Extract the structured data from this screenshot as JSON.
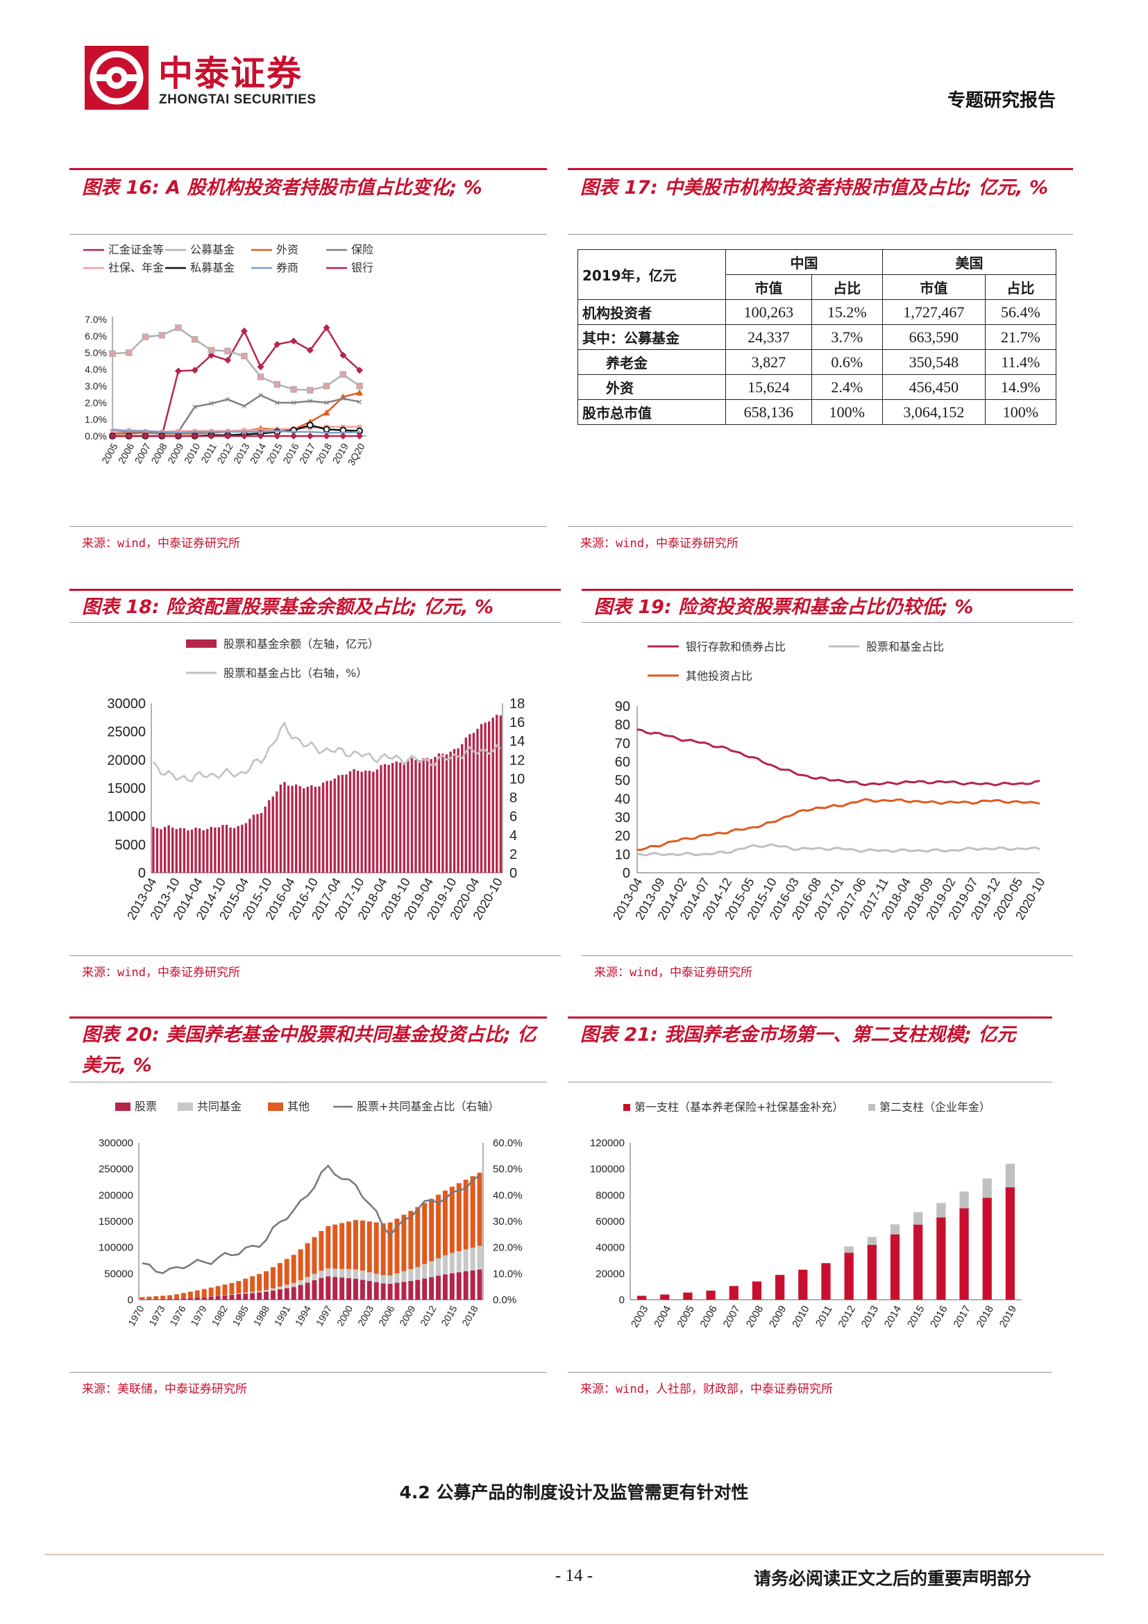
{
  "header": {
    "logo_cn": "中泰证券",
    "logo_en": "ZHONGTAI SECURITIES",
    "report_type": "专题研究报告"
  },
  "fig16": {
    "title": "图表 16: A 股机构投资者持股市值占比变化; %",
    "source": "来源：wind，中泰证券研究所",
    "chart_data": {
      "type": "line",
      "x": [
        "2005",
        "2006",
        "2007",
        "2008",
        "2009",
        "2010",
        "2011",
        "2012",
        "2013",
        "2014",
        "2015",
        "2016",
        "2017",
        "2018",
        "2019",
        "3Q20"
      ],
      "ylim": [
        0,
        7
      ],
      "yticks": [
        "0.0%",
        "1.0%",
        "2.0%",
        "3.0%",
        "4.0%",
        "5.0%",
        "6.0%",
        "7.0%"
      ],
      "series": [
        {
          "name": "汇金证金等",
          "color": "#b5244a",
          "values": [
            0,
            0,
            0,
            0,
            3.9,
            3.95,
            4.85,
            4.55,
            6.3,
            4.15,
            5.5,
            5.7,
            5.15,
            6.5,
            4.85,
            3.95
          ]
        },
        {
          "name": "公募基金",
          "color": "#b0b0b0",
          "values": [
            4.95,
            5.0,
            5.95,
            6.05,
            6.5,
            5.8,
            5.15,
            5.1,
            4.8,
            3.55,
            3.1,
            2.8,
            2.75,
            3.0,
            3.7,
            3.0
          ]
        },
        {
          "name": "外资",
          "color": "#e05a1e",
          "values": [
            0.15,
            0.15,
            0.2,
            0.15,
            0.15,
            0.15,
            0.2,
            0.25,
            0.3,
            0.45,
            0.4,
            0.4,
            0.85,
            1.4,
            2.35,
            2.6
          ]
        },
        {
          "name": "保险",
          "color": "#808080",
          "values": [
            0.3,
            0.25,
            0.25,
            0.2,
            0.25,
            1.75,
            1.95,
            2.2,
            1.8,
            2.45,
            2.0,
            2.0,
            2.1,
            2.0,
            2.25,
            2.05
          ]
        },
        {
          "name": "社保、年金",
          "color": "#f0a0a0",
          "values": [
            0.3,
            0.35,
            0.3,
            0.25,
            0.3,
            0.3,
            0.3,
            0.3,
            0.35,
            0.35,
            0.4,
            0.45,
            0.5,
            0.55,
            0.55,
            0.55
          ]
        },
        {
          "name": "私募基金",
          "color": "#111111",
          "values": [
            0,
            0,
            0,
            0,
            0,
            0,
            0.05,
            0.05,
            0.1,
            0.15,
            0.25,
            0.35,
            0.65,
            0.4,
            0.35,
            0.3
          ]
        },
        {
          "name": "券商",
          "color": "#7aa0c8",
          "values": [
            0.4,
            0.3,
            0.3,
            0.25,
            0.2,
            0.25,
            0.25,
            0.25,
            0.25,
            0.25,
            0.3,
            0.25,
            0.25,
            0.2,
            0.2,
            0.25
          ]
        },
        {
          "name": "银行",
          "color": "#b5244a",
          "values": [
            0,
            0,
            0,
            0,
            0,
            0,
            0,
            0,
            0,
            0,
            0,
            0,
            0,
            0,
            0,
            0
          ]
        }
      ]
    }
  },
  "fig17": {
    "title": "图表 17: 中美股市机构投资者持股市值及占比; 亿元, %",
    "source": "来源：wind，中泰证券研究所",
    "corner": "2019年，亿元",
    "group_cn": "中国",
    "group_us": "美国",
    "col_mv": "市值",
    "col_pct": "占比",
    "rows": [
      {
        "label": "机构投资者",
        "cn_mv": "100,263",
        "cn_pct": "15.2%",
        "us_mv": "1,727,467",
        "us_pct": "56.4%"
      },
      {
        "label": "其中：公募基金",
        "cn_mv": "24,337",
        "cn_pct": "3.7%",
        "us_mv": "663,590",
        "us_pct": "21.7%"
      },
      {
        "label": "养老金",
        "cn_mv": "3,827",
        "cn_pct": "0.6%",
        "us_mv": "350,548",
        "us_pct": "11.4%"
      },
      {
        "label": "外资",
        "cn_mv": "15,624",
        "cn_pct": "2.4%",
        "us_mv": "456,450",
        "us_pct": "14.9%"
      },
      {
        "label": "股市总市值",
        "cn_mv": "658,136",
        "cn_pct": "100%",
        "us_mv": "3,064,152",
        "us_pct": "100%"
      }
    ]
  },
  "fig18": {
    "title": "图表 18: 险资配置股票基金余额及占比; 亿元, %",
    "source": "来源：wind，中泰证券研究所",
    "chart_data": {
      "type": "bar",
      "legend": [
        "股票和基金余额（左轴，亿元）",
        "股票和基金占比（右轴，%）"
      ],
      "ylim_left": [
        0,
        30000
      ],
      "ylim_right": [
        0,
        18
      ],
      "yticks_left": [
        "0",
        "5000",
        "10000",
        "15000",
        "20000",
        "25000",
        "30000"
      ],
      "yticks_right": [
        "0",
        "2",
        "4",
        "6",
        "8",
        "10",
        "12",
        "14",
        "16",
        "18"
      ],
      "xticks": [
        "2013-04",
        "2013-10",
        "2014-04",
        "2014-10",
        "2015-04",
        "2015-10",
        "2016-04",
        "2016-10",
        "2017-04",
        "2017-10",
        "2018-04",
        "2018-10",
        "2019-04",
        "2019-10",
        "2020-04",
        "2020-10"
      ],
      "bar_anchor": [
        8000,
        8000,
        7600,
        8200,
        8200,
        11000,
        16000,
        15000,
        16000,
        18000,
        18000,
        19500,
        20000,
        20500,
        22000,
        26000,
        28000
      ],
      "line_anchor": [
        11.5,
        10.0,
        10.2,
        10.5,
        10.5,
        12.0,
        15.5,
        13.5,
        13.0,
        12.8,
        12.3,
        12.2,
        12.0,
        11.8,
        12.5,
        13.0,
        13.0
      ]
    }
  },
  "fig19": {
    "title": "图表 19: 险资投资股票和基金占比仍较低; %",
    "source": "来源：wind，中泰证券研究所",
    "chart_data": {
      "type": "line",
      "ylim": [
        0,
        90
      ],
      "yticks": [
        "0",
        "10",
        "20",
        "30",
        "40",
        "50",
        "60",
        "70",
        "80",
        "90"
      ],
      "xticks": [
        "2013-04",
        "2013-09",
        "2014-02",
        "2014-07",
        "2014-12",
        "2015-05",
        "2015-10",
        "2016-03",
        "2016-08",
        "2017-01",
        "2017-06",
        "2017-11",
        "2018-04",
        "2018-09",
        "2019-02",
        "2019-07",
        "2019-12",
        "2020-05",
        "2020-10"
      ],
      "series": [
        {
          "name": "银行存款和债券占比",
          "color": "#b5244a",
          "values": [
            77,
            75,
            72,
            70,
            67,
            63,
            58,
            54,
            51,
            50,
            48,
            48,
            49,
            49,
            49,
            48,
            48,
            48,
            49
          ]
        },
        {
          "name": "股票和基金占比",
          "color": "#c0c0c0",
          "values": [
            10,
            10,
            10,
            10,
            11,
            14,
            15,
            13,
            13,
            13,
            12,
            12,
            12,
            12,
            12,
            13,
            13,
            13,
            13
          ]
        },
        {
          "name": "其他投资占比",
          "color": "#e05a1e",
          "values": [
            12,
            15,
            18,
            20,
            22,
            24,
            27,
            32,
            35,
            36,
            39,
            39,
            39,
            38,
            38,
            38,
            39,
            38,
            38
          ]
        }
      ]
    }
  },
  "fig20": {
    "title": "图表 20: 美国养老基金中股票和共同基金投资占比; 亿美元, %",
    "source": "来源：美联储，中泰证券研究所",
    "chart_data": {
      "type": "bar",
      "legend": [
        "股票",
        "共同基金",
        "其他",
        "股票+共同基金占比（右轴）"
      ],
      "ylim_left": [
        0,
        300000
      ],
      "ylim_right": [
        0,
        60
      ],
      "yticks_left": [
        "0",
        "50000",
        "100000",
        "150000",
        "200000",
        "250000",
        "300000"
      ],
      "yticks_right": [
        "0.0%",
        "10.0%",
        "20.0%",
        "30.0%",
        "40.0%",
        "50.0%",
        "60.0%"
      ],
      "xticks": [
        "1970",
        "1973",
        "1976",
        "1979",
        "1982",
        "1985",
        "1988",
        "1991",
        "1994",
        "1997",
        "2000",
        "2003",
        "2006",
        "2009",
        "2012",
        "2015",
        "2018"
      ],
      "years": [
        1970,
        1975,
        1980,
        1985,
        1990,
        1995,
        2000,
        2005,
        2008,
        2010,
        2015,
        2019
      ],
      "stock_anchor": [
        1000,
        2000,
        5000,
        10000,
        15000,
        25000,
        45000,
        40000,
        30000,
        38000,
        50000,
        58000
      ],
      "fund_anchor": [
        0,
        0,
        200,
        1000,
        3000,
        8000,
        15000,
        18000,
        15000,
        25000,
        38000,
        45000
      ],
      "other_anchor": [
        4000,
        7000,
        15000,
        22000,
        35000,
        55000,
        80000,
        95000,
        100000,
        115000,
        125000,
        140000
      ],
      "ratio_anchor": [
        13,
        11,
        15,
        17,
        23,
        35,
        50,
        44,
        25,
        35,
        40,
        46
      ]
    }
  },
  "fig21": {
    "title": "图表 21: 我国养老金市场第一、第二支柱规模; 亿元",
    "source": "来源：wind，人社部，财政部，中泰证券研究所",
    "chart_data": {
      "type": "bar",
      "legend": [
        "第一支柱（基本养老保险+社保基金补充）",
        "第二支柱（企业年金）"
      ],
      "ylim": [
        0,
        120000
      ],
      "yticks": [
        "0",
        "20000",
        "40000",
        "60000",
        "80000",
        "100000",
        "120000"
      ],
      "categories": [
        "2003",
        "2004",
        "2005",
        "2006",
        "2007",
        "2008",
        "2009",
        "2010",
        "2011",
        "2012",
        "2013",
        "2014",
        "2015",
        "2016",
        "2017",
        "2018",
        "2019"
      ],
      "series": [
        {
          "name": "第一支柱（基本养老保险+社保基金补充）",
          "color": "#c8102e",
          "values": [
            3000,
            4000,
            5500,
            7000,
            10500,
            14000,
            19000,
            23000,
            28000,
            36000,
            42000,
            50000,
            57500,
            63000,
            70000,
            78000,
            86000
          ]
        },
        {
          "name": "第二支柱（企业年金）",
          "color": "#c0c0c0",
          "values": [
            0,
            0,
            0,
            0,
            0,
            0,
            0,
            0,
            0,
            4800,
            6000,
            7700,
            9500,
            11000,
            12800,
            14700,
            18000
          ]
        }
      ]
    }
  },
  "section_heading": "4.2 公募产品的制度设计及监管需更有针对性",
  "footer": {
    "page": "- 14 -",
    "notice": "请务必阅读正文之后的重要声明部分"
  }
}
